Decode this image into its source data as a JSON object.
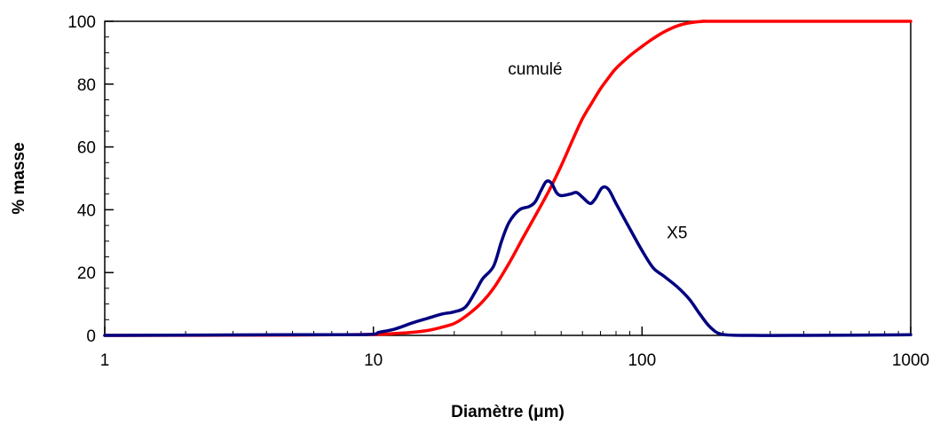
{
  "chart_data": {
    "type": "line",
    "xscale": "log",
    "xlim": [
      1,
      1000
    ],
    "ylim": [
      0,
      100
    ],
    "xlabel": "Diamètre (μm)",
    "ylabel": "% masse",
    "grid": false,
    "legend": "none",
    "x_ticks": [
      1,
      10,
      100,
      1000
    ],
    "x_tick_labels": [
      "1",
      "10",
      "100",
      "1000"
    ],
    "y_ticks": [
      0,
      20,
      40,
      60,
      80,
      100
    ],
    "y_tick_labels": [
      "0",
      "20",
      "40",
      "60",
      "80",
      "100"
    ],
    "series": [
      {
        "label": "cumulé",
        "color": "#ff0000",
        "points": [
          [
            1,
            0
          ],
          [
            5,
            0.1
          ],
          [
            10,
            0.3
          ],
          [
            12,
            0.6
          ],
          [
            14,
            1.0
          ],
          [
            16,
            1.6
          ],
          [
            18,
            2.6
          ],
          [
            20,
            3.8
          ],
          [
            22,
            6.0
          ],
          [
            25,
            10.0
          ],
          [
            28,
            15.0
          ],
          [
            32,
            23.0
          ],
          [
            36,
            31.0
          ],
          [
            40,
            38.0
          ],
          [
            45,
            46.0
          ],
          [
            50,
            54.0
          ],
          [
            55,
            62.0
          ],
          [
            60,
            69.0
          ],
          [
            65,
            74.0
          ],
          [
            70,
            78.5
          ],
          [
            75,
            82.0
          ],
          [
            80,
            85.0
          ],
          [
            90,
            89.0
          ],
          [
            100,
            92.0
          ],
          [
            110,
            94.5
          ],
          [
            120,
            96.5
          ],
          [
            135,
            98.5
          ],
          [
            150,
            99.5
          ],
          [
            170,
            100
          ],
          [
            200,
            100
          ],
          [
            1000,
            100
          ]
        ]
      },
      {
        "label": "X5",
        "color": "#000080",
        "points": [
          [
            1,
            0
          ],
          [
            5,
            0.2
          ],
          [
            9.5,
            0.3
          ],
          [
            10.5,
            1.0
          ],
          [
            12,
            2.0
          ],
          [
            14,
            4.0
          ],
          [
            16,
            5.5
          ],
          [
            18,
            6.8
          ],
          [
            20,
            7.5
          ],
          [
            22,
            9.0
          ],
          [
            24,
            14.0
          ],
          [
            25.5,
            18.0
          ],
          [
            28,
            22.0
          ],
          [
            30,
            30.0
          ],
          [
            32,
            36.0
          ],
          [
            35,
            40.0
          ],
          [
            38,
            41.0
          ],
          [
            40,
            42.5
          ],
          [
            42,
            46.0
          ],
          [
            44,
            49.0
          ],
          [
            46,
            48.5
          ],
          [
            48,
            45.5
          ],
          [
            50,
            44.5
          ],
          [
            54,
            45.0
          ],
          [
            57,
            45.5
          ],
          [
            60,
            44.0
          ],
          [
            64,
            42.0
          ],
          [
            67,
            43.5
          ],
          [
            71,
            47.0
          ],
          [
            75,
            46.5
          ],
          [
            80,
            42.0
          ],
          [
            90,
            34.0
          ],
          [
            100,
            27.0
          ],
          [
            110,
            21.5
          ],
          [
            120,
            19.0
          ],
          [
            135,
            15.5
          ],
          [
            150,
            11.5
          ],
          [
            165,
            6.5
          ],
          [
            180,
            2.5
          ],
          [
            200,
            0.3
          ],
          [
            260,
            0
          ],
          [
            400,
            0
          ],
          [
            1000,
            0.2
          ]
        ]
      }
    ],
    "annotations": [
      {
        "text": "cumulé",
        "x": 40,
        "y": 83
      },
      {
        "text": "X5",
        "x": 135,
        "y": 31
      }
    ]
  }
}
